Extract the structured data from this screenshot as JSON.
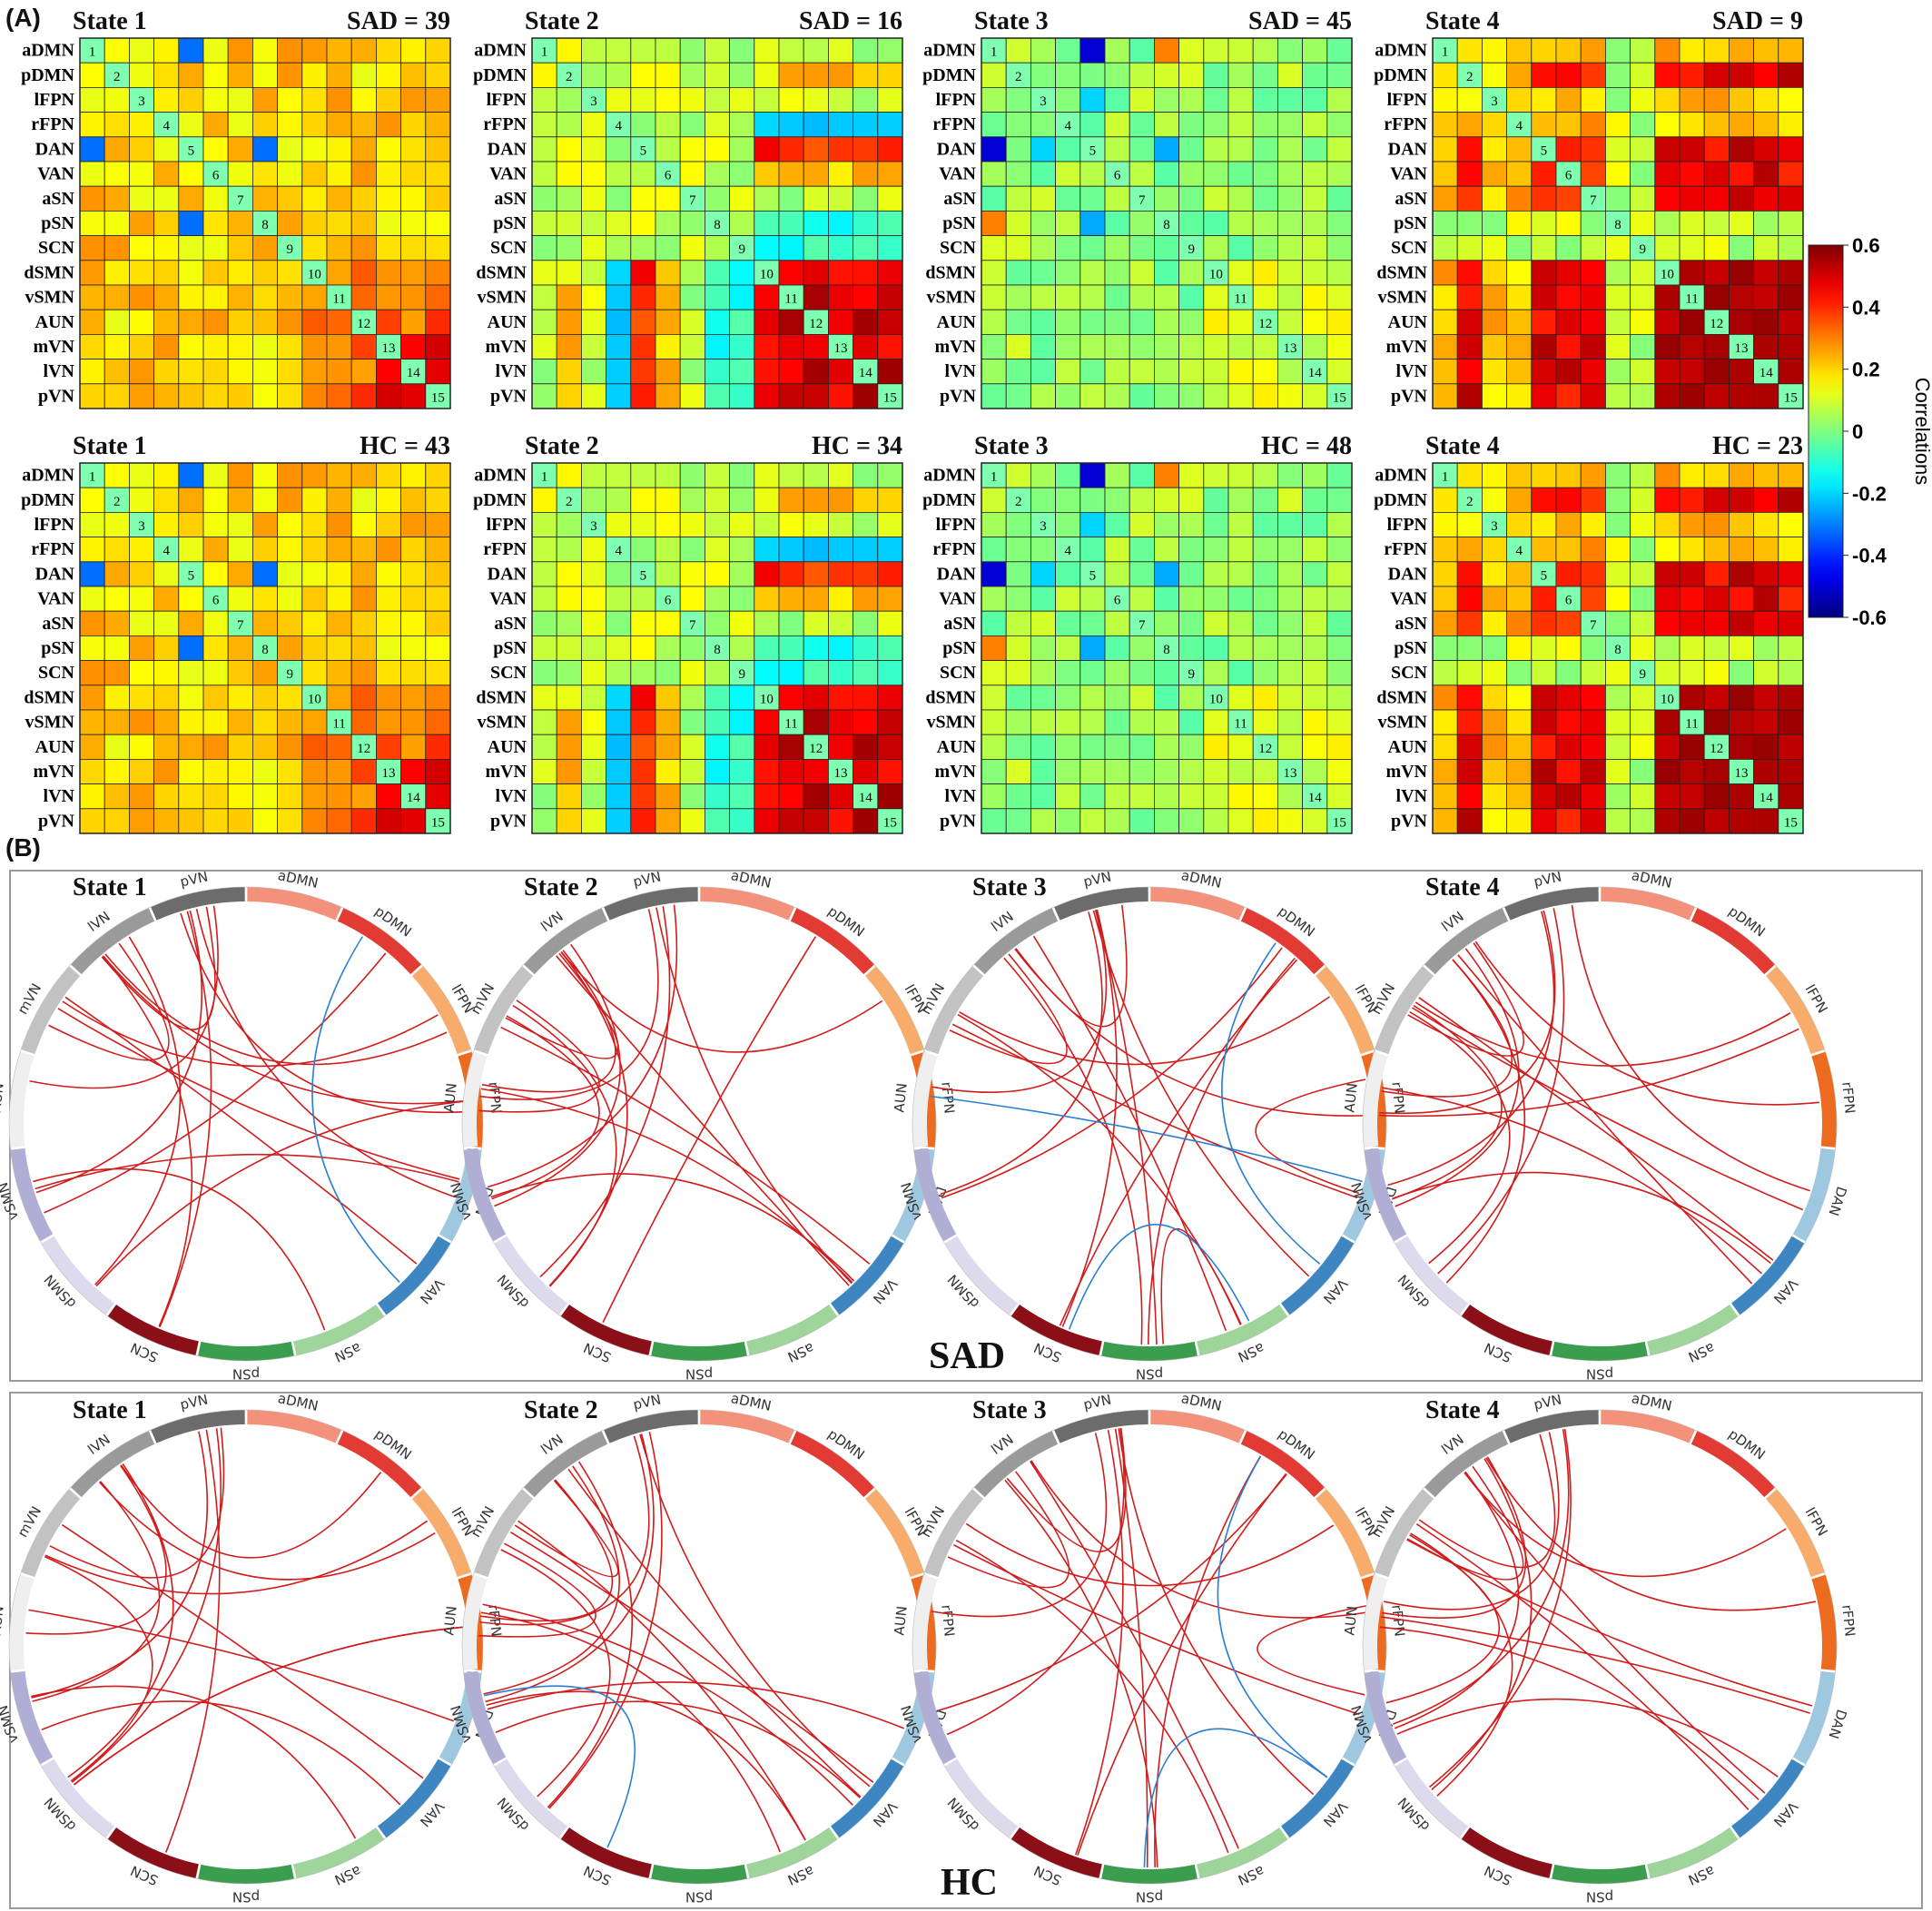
{
  "panel_a_label": "(A)",
  "panel_b_label": "(B)",
  "networks": [
    "aDMN",
    "pDMN",
    "lFPN",
    "rFPN",
    "DAN",
    "VAN",
    "aSN",
    "pSN",
    "SCN",
    "dSMN",
    "vSMN",
    "AUN",
    "mVN",
    "lVN",
    "pVN"
  ],
  "network_colors": {
    "aDMN": "#f4917a",
    "pDMN": "#e23b33",
    "lFPN": "#f8ac6c",
    "rFPN": "#ec6b1e",
    "DAN": "#9ec8e0",
    "VAN": "#3d86c2",
    "aSN": "#9fd49a",
    "pSN": "#3a9e4e",
    "SCN": "#8b0f17",
    "dSMN": "#dcdaec",
    "vSMN": "#b0aed4",
    "AUN": "#efefef",
    "mVN": "#c2c2c2",
    "lVN": "#9a9a9a",
    "pVN": "#6c6c6c"
  },
  "colorbar": {
    "label": "Correlations",
    "ticks": [
      "0.6",
      "0.4",
      "0.2",
      "0",
      "-0.2",
      "-0.4",
      "-0.6"
    ],
    "range": [
      -0.6,
      0.6
    ]
  },
  "matrices": [
    {
      "state": "State 1",
      "group_count": "SAD = 39",
      "profile": "s1"
    },
    {
      "state": "State 2",
      "group_count": "SAD = 16",
      "profile": "s2"
    },
    {
      "state": "State 3",
      "group_count": "SAD = 45",
      "profile": "s3"
    },
    {
      "state": "State 4",
      "group_count": "SAD = 9",
      "profile": "s4"
    },
    {
      "state": "State 1",
      "group_count": "HC = 43",
      "profile": "s1"
    },
    {
      "state": "State 2",
      "group_count": "HC = 34",
      "profile": "s2"
    },
    {
      "state": "State 3",
      "group_count": "HC = 48",
      "profile": "s3"
    },
    {
      "state": "State 4",
      "group_count": "HC = 23",
      "profile": "s4"
    }
  ],
  "chord_groups": [
    {
      "label": "SAD",
      "states": [
        "State 1",
        "State 2",
        "State 3",
        "State 4"
      ]
    },
    {
      "label": "HC",
      "states": [
        "State 1",
        "State 2",
        "State 3",
        "State 4"
      ]
    }
  ],
  "chord_data": [
    {
      "pos": [
        [
          8,
          14
        ],
        [
          8,
          13
        ],
        [
          9,
          13
        ],
        [
          10,
          1
        ],
        [
          10,
          14
        ],
        [
          10,
          4
        ],
        [
          11,
          14
        ],
        [
          12,
          13
        ],
        [
          12,
          2
        ],
        [
          12,
          4
        ],
        [
          13,
          14
        ],
        [
          13,
          3
        ],
        [
          14,
          3
        ],
        [
          14,
          4
        ],
        [
          9,
          3
        ],
        [
          2,
          13
        ],
        [
          5,
          12
        ],
        [
          6,
          10
        ]
      ],
      "neg": [
        [
          1,
          5
        ]
      ]
    },
    {
      "pos": [
        [
          9,
          14
        ],
        [
          9,
          13
        ],
        [
          9,
          12
        ],
        [
          10,
          14
        ],
        [
          10,
          13
        ],
        [
          10,
          5
        ],
        [
          11,
          14
        ],
        [
          11,
          13
        ],
        [
          11,
          12
        ],
        [
          11,
          5
        ],
        [
          12,
          13
        ],
        [
          12,
          5
        ],
        [
          13,
          5
        ],
        [
          14,
          5
        ],
        [
          10,
          12
        ],
        [
          8,
          1
        ],
        [
          13,
          2
        ]
      ],
      "neg": []
    },
    {
      "pos": [
        [
          10,
          1
        ],
        [
          10,
          14
        ],
        [
          11,
          14
        ],
        [
          12,
          13
        ],
        [
          7,
          14
        ],
        [
          7,
          13
        ],
        [
          6,
          13
        ],
        [
          5,
          14
        ],
        [
          8,
          14
        ],
        [
          8,
          1
        ],
        [
          3,
          13
        ],
        [
          4,
          12
        ],
        [
          6,
          12
        ],
        [
          13,
          14
        ],
        [
          2,
          12
        ],
        [
          3,
          4
        ],
        [
          6,
          7
        ],
        [
          7,
          1
        ]
      ],
      "neg": [
        [
          1,
          5
        ],
        [
          4,
          11
        ],
        [
          8,
          6
        ]
      ]
    },
    {
      "pos": [
        [
          9,
          14
        ],
        [
          9,
          13
        ],
        [
          9,
          12
        ],
        [
          10,
          14
        ],
        [
          10,
          13
        ],
        [
          10,
          12
        ],
        [
          11,
          14
        ],
        [
          11,
          13
        ],
        [
          12,
          13
        ],
        [
          4,
          12
        ],
        [
          5,
          13
        ],
        [
          5,
          11
        ],
        [
          5,
          10
        ],
        [
          2,
          12
        ],
        [
          4,
          14
        ],
        [
          3,
          13
        ],
        [
          5,
          12
        ],
        [
          11,
          2
        ]
      ],
      "neg": []
    },
    {
      "pos": [
        [
          9,
          14
        ],
        [
          9,
          13
        ],
        [
          9,
          12
        ],
        [
          10,
          14
        ],
        [
          10,
          13
        ],
        [
          11,
          13
        ],
        [
          12,
          14
        ],
        [
          12,
          2
        ],
        [
          11,
          4
        ],
        [
          9,
          3
        ],
        [
          10,
          5
        ],
        [
          8,
          14
        ],
        [
          13,
          1
        ],
        [
          2,
          13
        ],
        [
          5,
          12
        ],
        [
          6,
          10
        ],
        [
          3,
          9
        ]
      ],
      "neg": []
    },
    {
      "pos": [
        [
          9,
          14
        ],
        [
          9,
          13
        ],
        [
          9,
          12
        ],
        [
          10,
          14
        ],
        [
          10,
          13
        ],
        [
          10,
          5
        ],
        [
          11,
          14
        ],
        [
          11,
          13
        ],
        [
          11,
          12
        ],
        [
          11,
          5
        ],
        [
          12,
          13
        ],
        [
          12,
          5
        ],
        [
          13,
          5
        ],
        [
          14,
          5
        ],
        [
          10,
          4
        ],
        [
          11,
          6
        ],
        [
          12,
          6
        ],
        [
          10,
          6
        ]
      ],
      "neg": [
        [
          8,
          10
        ]
      ]
    },
    {
      "pos": [
        [
          10,
          1
        ],
        [
          10,
          14
        ],
        [
          11,
          14
        ],
        [
          12,
          13
        ],
        [
          7,
          14
        ],
        [
          7,
          13
        ],
        [
          6,
          13
        ],
        [
          5,
          14
        ],
        [
          8,
          14
        ],
        [
          8,
          1
        ],
        [
          3,
          13
        ],
        [
          4,
          12
        ],
        [
          6,
          12
        ],
        [
          13,
          14
        ],
        [
          2,
          12
        ],
        [
          3,
          4
        ],
        [
          7,
          1
        ]
      ],
      "neg": [
        [
          1,
          5
        ],
        [
          7,
          5
        ]
      ]
    },
    {
      "pos": [
        [
          9,
          14
        ],
        [
          9,
          13
        ],
        [
          9,
          12
        ],
        [
          10,
          14
        ],
        [
          10,
          13
        ],
        [
          10,
          12
        ],
        [
          11,
          14
        ],
        [
          11,
          13
        ],
        [
          12,
          13
        ],
        [
          12,
          14
        ],
        [
          4,
          12
        ],
        [
          5,
          13
        ],
        [
          5,
          11
        ],
        [
          5,
          10
        ],
        [
          5,
          12
        ],
        [
          4,
          11
        ],
        [
          3,
          13
        ],
        [
          2,
          13
        ]
      ],
      "neg": []
    }
  ]
}
